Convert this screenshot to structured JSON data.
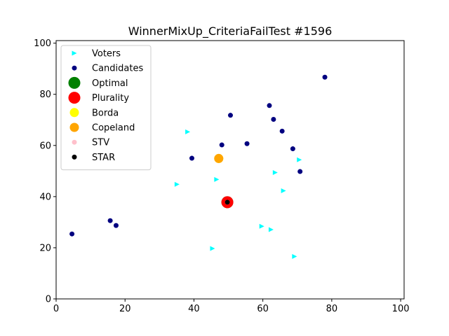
{
  "chart_data": {
    "type": "scatter",
    "title": "WinnerMixUp_CriteriaFailTest #1596",
    "xlabel": "",
    "ylabel": "",
    "xlim": [
      0,
      101
    ],
    "ylim": [
      0,
      101
    ],
    "xticks": [
      0,
      20,
      40,
      60,
      80,
      100
    ],
    "yticks": [
      0,
      20,
      40,
      60,
      80,
      100
    ],
    "grid": false,
    "legend_position": "top-left",
    "series": [
      {
        "name": "Voters",
        "marker": "triangle-right",
        "color": "#00ffff",
        "points": [
          [
            38.2,
            65.3
          ],
          [
            70.6,
            54.4
          ],
          [
            63.6,
            49.4
          ],
          [
            46.6,
            46.7
          ],
          [
            35.1,
            44.8
          ],
          [
            66.0,
            42.3
          ],
          [
            59.7,
            28.4
          ],
          [
            62.4,
            27.1
          ],
          [
            45.4,
            19.7
          ],
          [
            69.2,
            16.6
          ]
        ]
      },
      {
        "name": "Candidates",
        "marker": "circle",
        "color": "#000080",
        "points": [
          [
            78.0,
            86.7
          ],
          [
            61.9,
            75.6
          ],
          [
            50.6,
            71.8
          ],
          [
            63.1,
            70.2
          ],
          [
            65.6,
            65.6
          ],
          [
            48.1,
            60.2
          ],
          [
            55.4,
            60.7
          ],
          [
            68.7,
            58.7
          ],
          [
            39.4,
            55.0
          ],
          [
            70.8,
            49.8
          ],
          [
            15.7,
            30.6
          ],
          [
            17.4,
            28.7
          ],
          [
            4.6,
            25.4
          ]
        ]
      },
      {
        "name": "Optimal",
        "marker": "circle-large",
        "color": "#008000",
        "points": [
          [
            49.7,
            37.8
          ]
        ]
      },
      {
        "name": "Plurality",
        "marker": "circle-large",
        "color": "#ff0000",
        "points": [
          [
            49.7,
            37.8
          ]
        ]
      },
      {
        "name": "Borda",
        "marker": "circle-medium",
        "color": "#ffff00",
        "points": [
          [
            47.2,
            54.9
          ]
        ]
      },
      {
        "name": "Copeland",
        "marker": "circle-medium",
        "color": "#ffa500",
        "points": [
          [
            47.2,
            54.9
          ]
        ]
      },
      {
        "name": "STV",
        "marker": "circle-small",
        "color": "#ffc0cb",
        "points": [
          [
            49.7,
            37.8
          ]
        ]
      },
      {
        "name": "STAR",
        "marker": "circle-small",
        "color": "#000000",
        "points": [
          [
            49.7,
            37.8
          ]
        ]
      }
    ]
  }
}
